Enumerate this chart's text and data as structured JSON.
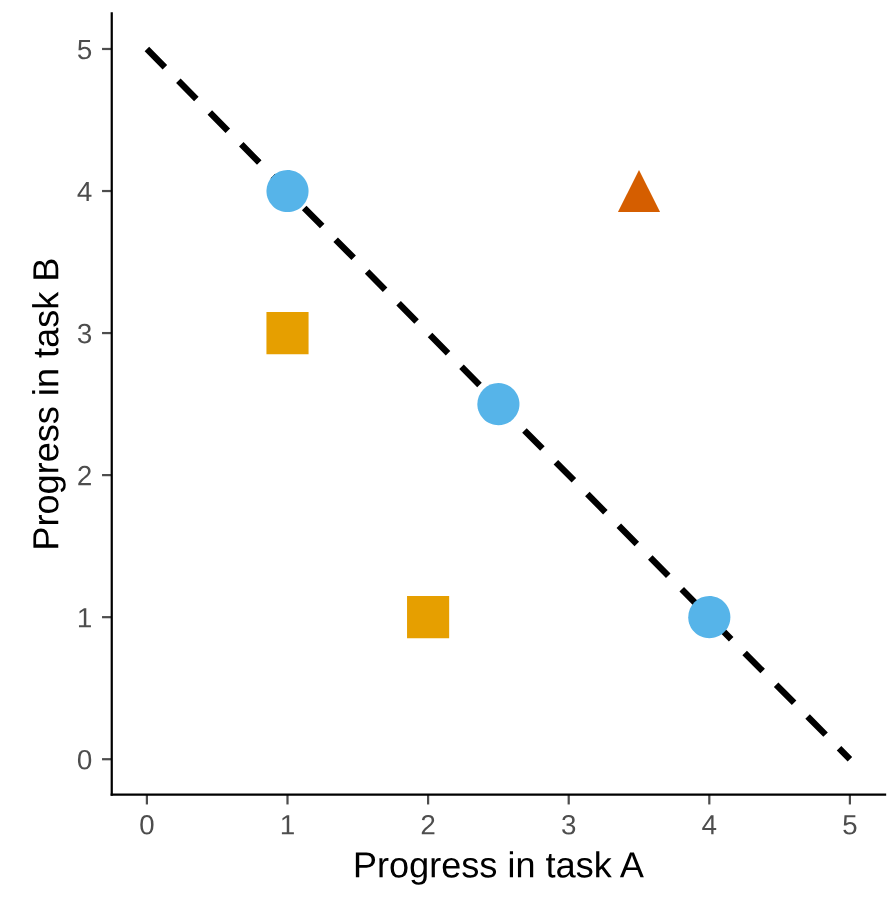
{
  "chart_data": {
    "type": "scatter",
    "xlabel": "Progress in task A",
    "ylabel": "Progress in task B",
    "series": [
      {
        "type": "line",
        "x": [
          0,
          5
        ],
        "values": [
          5,
          0
        ],
        "color": "#000000",
        "line_style": "dashed",
        "marker": "none"
      },
      {
        "x": [
          1,
          2.5,
          4
        ],
        "values": [
          4,
          2.5,
          1
        ],
        "color": "#56b4e9",
        "marker": "circle"
      },
      {
        "x": [
          1,
          2
        ],
        "values": [
          3,
          1
        ],
        "color": "#e69f00",
        "marker": "square"
      },
      {
        "x": [
          3.5
        ],
        "values": [
          4
        ],
        "color": "#d55e00",
        "marker": "triangle"
      }
    ],
    "xlim": [
      -0.25,
      5.25
    ],
    "ylim": [
      -0.25,
      5.25
    ],
    "xticks": [
      0,
      1,
      2,
      3,
      4,
      5
    ],
    "yticks": [
      0,
      1,
      2,
      3,
      4,
      5
    ],
    "grid": false,
    "legend": false
  }
}
